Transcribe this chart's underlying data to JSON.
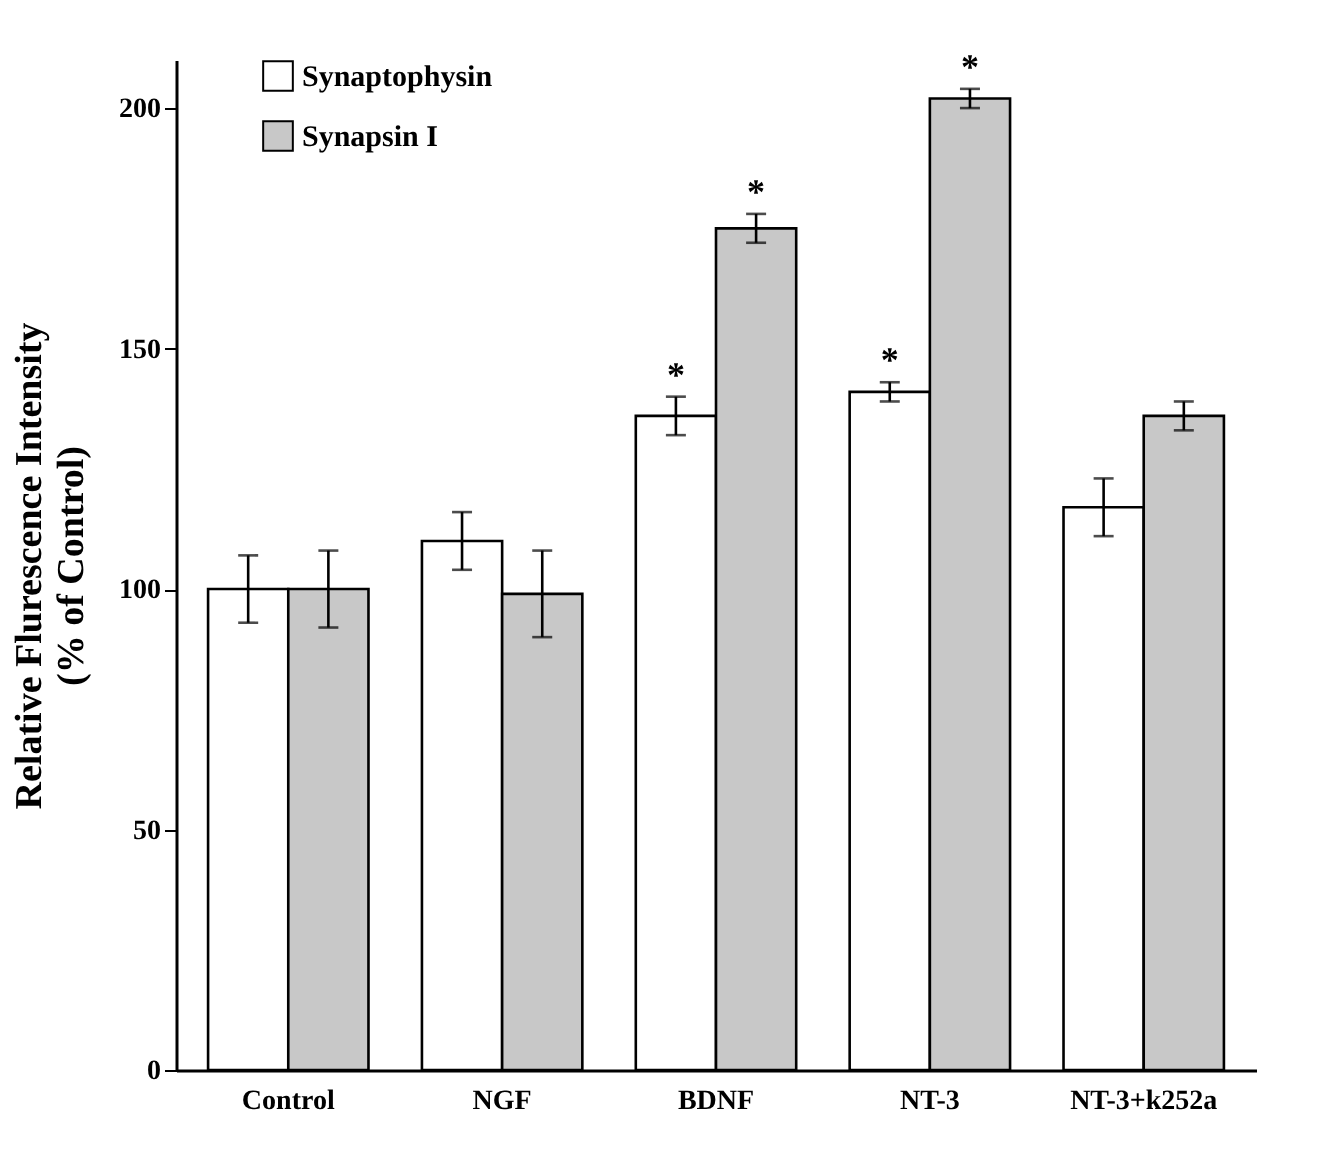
{
  "chart_data": {
    "type": "bar",
    "ylabel": "Relative Flurescence Intensity\n(% of Control)",
    "categories": [
      "Control",
      "NGF",
      "BDNF",
      "NT-3",
      "NT-3+k252a"
    ],
    "series": [
      {
        "name": "Synaptophysin",
        "color": "#ffffff",
        "values": [
          100,
          110,
          136,
          141,
          117
        ],
        "errors": [
          7,
          6,
          4,
          2,
          6
        ],
        "value_labels": [
          null,
          null,
          "*",
          "*",
          null
        ]
      },
      {
        "name": "Synapsin I",
        "color": "#c8c8c8",
        "values": [
          100,
          99,
          175,
          202,
          136
        ],
        "errors": [
          8,
          9,
          3,
          2,
          3
        ],
        "value_labels": [
          null,
          null,
          "*",
          "*",
          null
        ]
      }
    ],
    "ylim": [
      0,
      210
    ],
    "yticks": [
      0,
      50,
      100,
      150,
      200
    ],
    "legend": "top left",
    "grid": false
  }
}
